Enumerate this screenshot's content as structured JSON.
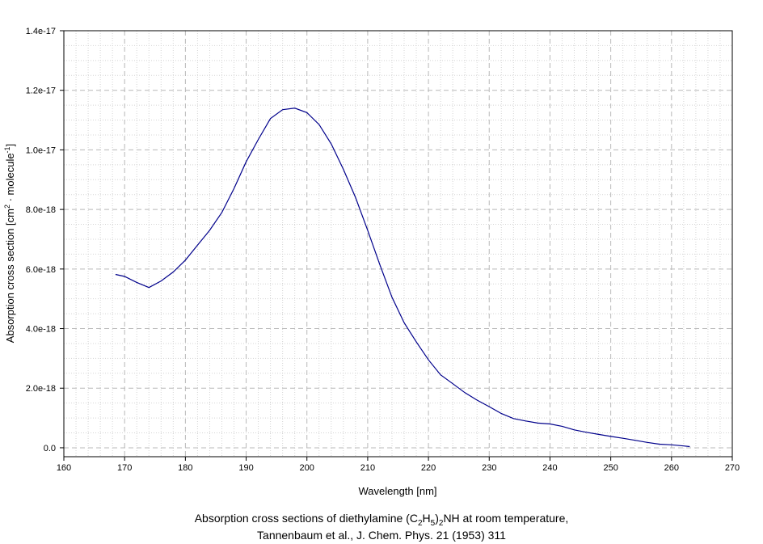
{
  "chart_data": {
    "type": "line",
    "title": "",
    "xlabel": "Wavelength [nm]",
    "ylabel": {
      "prefix": "Absorption cross section [cm",
      "sup1": "2",
      "middle": " · molecule",
      "sup2": "-1",
      "suffix": "]"
    },
    "xlim": [
      160,
      270
    ],
    "ylim": [
      -3e-19,
      1.4e-17
    ],
    "x_ticks": [
      160,
      170,
      180,
      190,
      200,
      210,
      220,
      230,
      240,
      250,
      260,
      270
    ],
    "y_ticks": [
      0,
      2e-18,
      4e-18,
      6e-18,
      8e-18,
      1e-17,
      1.2e-17,
      1.4e-17
    ],
    "y_tick_labels": [
      "0.0",
      "2.0e-18",
      "4.0e-18",
      "6.0e-18",
      "8.0e-18",
      "1.0e-17",
      "1.2e-17",
      "1.4e-17"
    ],
    "grid": true,
    "line_color": "#00008b",
    "series": [
      {
        "x": [
          168.5,
          170,
          172,
          174,
          176,
          178,
          180,
          182,
          184,
          186,
          188,
          190,
          192,
          194,
          196,
          198,
          200,
          202,
          204,
          206,
          208,
          210,
          212,
          214,
          216,
          218,
          220,
          222,
          224,
          226,
          228,
          230,
          232,
          234,
          236,
          238,
          240,
          242,
          244,
          246,
          248,
          250,
          252,
          254,
          256,
          258,
          260,
          262,
          263
        ],
        "y": [
          5.82e-18,
          5.75e-18,
          5.55e-18,
          5.38e-18,
          5.6e-18,
          5.9e-18,
          6.3e-18,
          6.8e-18,
          7.3e-18,
          7.9e-18,
          8.7e-18,
          9.6e-18,
          1.035e-17,
          1.105e-17,
          1.135e-17,
          1.14e-17,
          1.125e-17,
          1.085e-17,
          1.02e-17,
          9.35e-18,
          8.4e-18,
          7.3e-18,
          6.15e-18,
          5.05e-18,
          4.2e-18,
          3.55e-18,
          2.95e-18,
          2.45e-18,
          2.15e-18,
          1.85e-18,
          1.6e-18,
          1.38e-18,
          1.15e-18,
          9.8e-19,
          9e-19,
          8.3e-19,
          8e-19,
          7.2e-19,
          6e-19,
          5.2e-19,
          4.5e-19,
          3.8e-19,
          3.2e-19,
          2.5e-19,
          1.8e-19,
          1.2e-19,
          1e-19,
          6e-20,
          4e-20
        ]
      }
    ]
  },
  "caption": {
    "line1_prefix": "Absorption cross sections of diethylamine (C",
    "sub1": "2",
    "h": "H",
    "sub2": "5",
    "close": ")",
    "sub3": "2",
    "line1_suffix": "NH at room temperature,",
    "line2": "Tannenbaum et al., J. Chem. Phys. 21 (1953) 311"
  }
}
